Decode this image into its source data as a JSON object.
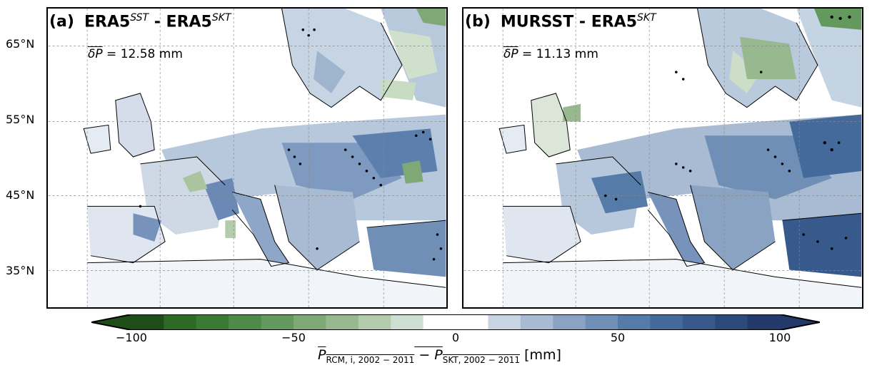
{
  "panels": [
    {
      "tag": "(a)",
      "title_main": "ERA5",
      "title_sup1": "SST",
      "title_sep": " - ERA5",
      "title_sup2": "SKT",
      "stat_symbol": "δP",
      "stat_text": " = 12.58 mm"
    },
    {
      "tag": "(b)",
      "title_main": "MURSST - ERA5",
      "title_sup1": "",
      "title_sep": "",
      "title_sup2": "SKT",
      "stat_symbol": "δP",
      "stat_text": " = 11.13 mm"
    }
  ],
  "lat_labels": [
    "65°N",
    "55°N",
    "45°N",
    "35°N"
  ],
  "colorbar": {
    "ticks": [
      "−100",
      "−50",
      "0",
      "50",
      "100"
    ],
    "range": [
      -100,
      100
    ],
    "step": 10,
    "colors_negative": [
      "#1f4d1a",
      "#2d6a26",
      "#3b7a34",
      "#4e8a48",
      "#64995d",
      "#7ea876",
      "#98b990",
      "#b3ccac",
      "#ceded0",
      "#ffffff"
    ],
    "colors_positive": [
      "#ffffff",
      "#c9d4e2",
      "#a8bbd2",
      "#8aa3c3",
      "#6f8fb6",
      "#557ba8",
      "#44699b",
      "#37598b",
      "#2c4b7b",
      "#22396a"
    ],
    "label_main": "P",
    "label_sub1": "RCM, i, 2002 − 2011",
    "label_minus": " − ",
    "label_sub2": "SKT, 2002 − 2011",
    "label_unit": " [mm]"
  }
}
